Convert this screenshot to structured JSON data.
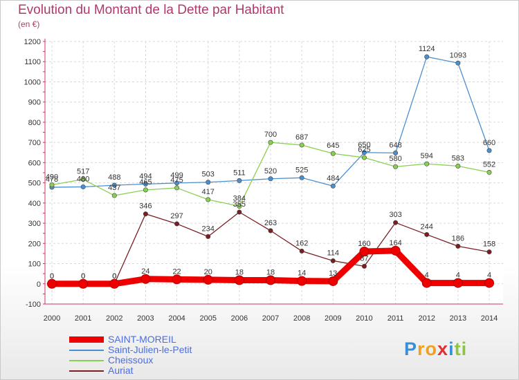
{
  "header": {
    "title": "Evolution du Montant de la Dette par Habitant",
    "subtitle": "(en €)"
  },
  "logo": {
    "letters": [
      "P",
      "r",
      "o",
      "x",
      "i",
      "t",
      "i"
    ],
    "colors": [
      "#3a8ed8",
      "#f0a020",
      "#f0a020",
      "#e03030",
      "#3a8ed8",
      "#8cc63f",
      "#8cc63f"
    ]
  },
  "chart_data": {
    "type": "line",
    "title": "Evolution du Montant de la Dette par Habitant",
    "subtitle": "(en €)",
    "xlabel": "",
    "ylabel": "",
    "ylim": [
      -100,
      1200
    ],
    "y_ticks": [
      "-100",
      "0",
      "100",
      "200",
      "300",
      "400",
      "500",
      "600",
      "700",
      "800",
      "900",
      "1000",
      "1100",
      "1200"
    ],
    "y_tick_values": [
      -100,
      0,
      100,
      200,
      300,
      400,
      500,
      600,
      700,
      800,
      900,
      1000,
      1100,
      1200
    ],
    "x": [
      "2000",
      "2001",
      "2002",
      "2003",
      "2004",
      "2005",
      "2006",
      "2007",
      "2008",
      "2009",
      "2010",
      "2011",
      "2012",
      "2013",
      "2014"
    ],
    "grid": true,
    "legend_position": "bottom-left",
    "series": [
      {
        "name": "SAINT-MOREIL",
        "color": "#ee0000",
        "text_color": "#4a6ee0",
        "values": [
          0,
          0,
          0,
          24,
          22,
          20,
          18,
          18,
          14,
          13,
          160,
          164,
          4,
          4,
          4
        ],
        "labels": [
          "0",
          "0",
          "0",
          "24",
          "22",
          "20",
          "18",
          "18",
          "14",
          "13",
          "160",
          "164",
          "4",
          "4",
          "4"
        ],
        "thick": true
      },
      {
        "name": "Saint-Julien-le-Petit",
        "color": "#4a8fd0",
        "text_color": "#4a6ee0",
        "values": [
          478,
          480,
          488,
          494,
          499,
          503,
          511,
          520,
          525,
          484,
          650,
          648,
          1124,
          1093,
          660
        ],
        "labels": [
          "478",
          "480",
          "488",
          "494",
          "499",
          "503",
          "511",
          "520",
          "525",
          "484",
          "650",
          "648",
          "1124",
          "1093",
          "660"
        ]
      },
      {
        "name": "Cheissoux",
        "color": "#88d050",
        "text_color": "#4a6ee0",
        "values": [
          490,
          517,
          437,
          465,
          475,
          417,
          384,
          700,
          687,
          645,
          625,
          580,
          594,
          583,
          552
        ],
        "labels": [
          "490",
          "517",
          "437",
          "465",
          "475",
          "417",
          "384",
          "700",
          "687",
          "645",
          "625",
          "580",
          "594",
          "583",
          "552"
        ]
      },
      {
        "name": "Auriat",
        "color": "#7a1e22",
        "text_color": "#4a6ee0",
        "values": [
          0,
          0,
          0,
          346,
          297,
          234,
          355,
          263,
          162,
          114,
          87,
          303,
          244,
          186,
          158
        ],
        "labels": [
          "0",
          "0",
          "0",
          "346",
          "297",
          "234",
          "355",
          "263",
          "162",
          "114",
          "87",
          "303",
          "244",
          "186",
          "158"
        ]
      }
    ]
  }
}
